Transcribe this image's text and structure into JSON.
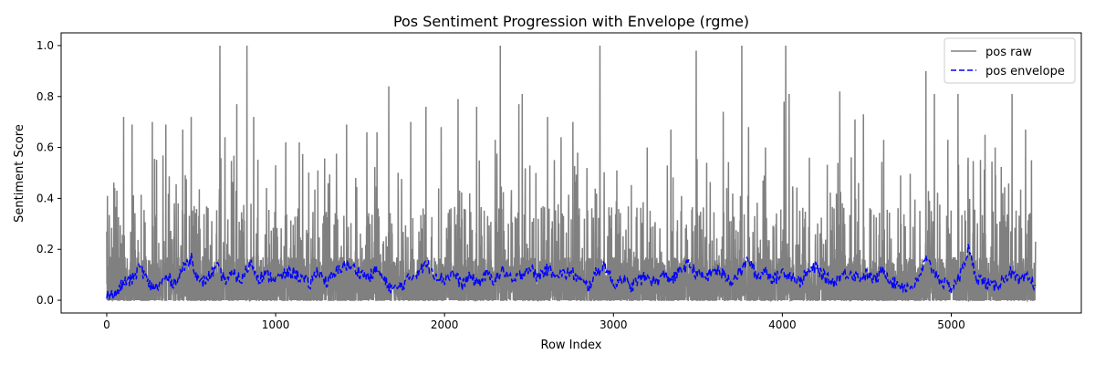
{
  "chart_data": {
    "type": "line",
    "title": "Pos Sentiment Progression with Envelope (rgme)",
    "xlabel": "Row Index",
    "ylabel": "Sentiment Score",
    "xlim": [
      -270,
      5770
    ],
    "ylim": [
      -0.05,
      1.05
    ],
    "x_ticks": [
      0,
      1000,
      2000,
      3000,
      4000,
      5000
    ],
    "y_ticks": [
      0.0,
      0.2,
      0.4,
      0.6,
      0.8,
      1.0
    ],
    "x_tick_labels": [
      "0",
      "1000",
      "2000",
      "3000",
      "4000",
      "5000"
    ],
    "y_tick_labels": [
      "0.0",
      "0.2",
      "0.4",
      "0.6",
      "0.8",
      "1.0"
    ],
    "grid": false,
    "legend_position": "top-right",
    "n_points": 5500,
    "series": [
      {
        "name": "pos raw",
        "color": "#808080",
        "line_style": "solid",
        "typical_range": [
          0.0,
          0.3
        ],
        "peaks": [
          {
            "x": 0,
            "y": 0.27
          },
          {
            "x": 60,
            "y": 0.43
          },
          {
            "x": 100,
            "y": 0.72
          },
          {
            "x": 150,
            "y": 0.69
          },
          {
            "x": 270,
            "y": 0.7
          },
          {
            "x": 350,
            "y": 0.69
          },
          {
            "x": 450,
            "y": 0.67
          },
          {
            "x": 500,
            "y": 0.72
          },
          {
            "x": 670,
            "y": 1.0
          },
          {
            "x": 700,
            "y": 0.64
          },
          {
            "x": 770,
            "y": 0.77
          },
          {
            "x": 830,
            "y": 1.0
          },
          {
            "x": 870,
            "y": 0.72
          },
          {
            "x": 1000,
            "y": 0.53
          },
          {
            "x": 1060,
            "y": 0.62
          },
          {
            "x": 1140,
            "y": 0.62
          },
          {
            "x": 1250,
            "y": 0.51
          },
          {
            "x": 1420,
            "y": 0.69
          },
          {
            "x": 1540,
            "y": 0.66
          },
          {
            "x": 1600,
            "y": 0.66
          },
          {
            "x": 1670,
            "y": 0.84
          },
          {
            "x": 1800,
            "y": 0.7
          },
          {
            "x": 1890,
            "y": 0.76
          },
          {
            "x": 1980,
            "y": 0.68
          },
          {
            "x": 2080,
            "y": 0.79
          },
          {
            "x": 2190,
            "y": 0.76
          },
          {
            "x": 2300,
            "y": 0.63
          },
          {
            "x": 2330,
            "y": 1.0
          },
          {
            "x": 2440,
            "y": 0.77
          },
          {
            "x": 2460,
            "y": 0.81
          },
          {
            "x": 2610,
            "y": 0.72
          },
          {
            "x": 2690,
            "y": 0.64
          },
          {
            "x": 2760,
            "y": 0.7
          },
          {
            "x": 2920,
            "y": 1.0
          },
          {
            "x": 3020,
            "y": 0.51
          },
          {
            "x": 3200,
            "y": 0.6
          },
          {
            "x": 3340,
            "y": 0.67
          },
          {
            "x": 3490,
            "y": 0.98
          },
          {
            "x": 3650,
            "y": 0.74
          },
          {
            "x": 3760,
            "y": 1.0
          },
          {
            "x": 3800,
            "y": 0.68
          },
          {
            "x": 3900,
            "y": 0.6
          },
          {
            "x": 4010,
            "y": 0.78
          },
          {
            "x": 4020,
            "y": 1.0
          },
          {
            "x": 4040,
            "y": 0.81
          },
          {
            "x": 4160,
            "y": 0.56
          },
          {
            "x": 4340,
            "y": 0.82
          },
          {
            "x": 4430,
            "y": 0.71
          },
          {
            "x": 4480,
            "y": 0.73
          },
          {
            "x": 4600,
            "y": 0.63
          },
          {
            "x": 4700,
            "y": 0.49
          },
          {
            "x": 4850,
            "y": 0.9
          },
          {
            "x": 4900,
            "y": 0.81
          },
          {
            "x": 4980,
            "y": 0.63
          },
          {
            "x": 5040,
            "y": 0.81
          },
          {
            "x": 5100,
            "y": 0.56
          },
          {
            "x": 5200,
            "y": 0.65
          },
          {
            "x": 5260,
            "y": 0.6
          },
          {
            "x": 5360,
            "y": 0.81
          },
          {
            "x": 5440,
            "y": 0.67
          },
          {
            "x": 5499,
            "y": 0.23
          }
        ]
      },
      {
        "name": "pos envelope",
        "color": "#0000ff",
        "line_style": "dashed",
        "typical_range": [
          0.02,
          0.15
        ],
        "points": [
          [
            0,
            0.03
          ],
          [
            50,
            0.02
          ],
          [
            100,
            0.07
          ],
          [
            150,
            0.08
          ],
          [
            200,
            0.13
          ],
          [
            250,
            0.06
          ],
          [
            300,
            0.05
          ],
          [
            350,
            0.09
          ],
          [
            400,
            0.07
          ],
          [
            450,
            0.12
          ],
          [
            500,
            0.17
          ],
          [
            550,
            0.06
          ],
          [
            600,
            0.09
          ],
          [
            650,
            0.13
          ],
          [
            700,
            0.08
          ],
          [
            750,
            0.1
          ],
          [
            800,
            0.08
          ],
          [
            850,
            0.15
          ],
          [
            900,
            0.09
          ],
          [
            950,
            0.1
          ],
          [
            1000,
            0.08
          ],
          [
            1050,
            0.1
          ],
          [
            1100,
            0.11
          ],
          [
            1150,
            0.09
          ],
          [
            1200,
            0.06
          ],
          [
            1250,
            0.12
          ],
          [
            1300,
            0.07
          ],
          [
            1350,
            0.1
          ],
          [
            1400,
            0.14
          ],
          [
            1450,
            0.13
          ],
          [
            1500,
            0.11
          ],
          [
            1550,
            0.09
          ],
          [
            1600,
            0.12
          ],
          [
            1650,
            0.07
          ],
          [
            1700,
            0.04
          ],
          [
            1750,
            0.06
          ],
          [
            1800,
            0.09
          ],
          [
            1850,
            0.12
          ],
          [
            1900,
            0.14
          ],
          [
            1950,
            0.1
          ],
          [
            2000,
            0.08
          ],
          [
            2050,
            0.11
          ],
          [
            2100,
            0.06
          ],
          [
            2150,
            0.09
          ],
          [
            2200,
            0.07
          ],
          [
            2250,
            0.1
          ],
          [
            2300,
            0.08
          ],
          [
            2350,
            0.12
          ],
          [
            2400,
            0.07
          ],
          [
            2450,
            0.1
          ],
          [
            2500,
            0.13
          ],
          [
            2550,
            0.09
          ],
          [
            2600,
            0.12
          ],
          [
            2650,
            0.11
          ],
          [
            2700,
            0.1
          ],
          [
            2750,
            0.11
          ],
          [
            2800,
            0.08
          ],
          [
            2850,
            0.05
          ],
          [
            2900,
            0.11
          ],
          [
            2950,
            0.14
          ],
          [
            3000,
            0.06
          ],
          [
            3050,
            0.09
          ],
          [
            3100,
            0.05
          ],
          [
            3150,
            0.08
          ],
          [
            3200,
            0.09
          ],
          [
            3250,
            0.07
          ],
          [
            3300,
            0.1
          ],
          [
            3350,
            0.08
          ],
          [
            3400,
            0.12
          ],
          [
            3450,
            0.14
          ],
          [
            3500,
            0.1
          ],
          [
            3550,
            0.09
          ],
          [
            3600,
            0.12
          ],
          [
            3650,
            0.1
          ],
          [
            3700,
            0.08
          ],
          [
            3750,
            0.11
          ],
          [
            3800,
            0.16
          ],
          [
            3850,
            0.09
          ],
          [
            3900,
            0.12
          ],
          [
            3950,
            0.08
          ],
          [
            4000,
            0.11
          ],
          [
            4050,
            0.1
          ],
          [
            4100,
            0.07
          ],
          [
            4150,
            0.11
          ],
          [
            4200,
            0.13
          ],
          [
            4250,
            0.09
          ],
          [
            4300,
            0.07
          ],
          [
            4350,
            0.1
          ],
          [
            4400,
            0.11
          ],
          [
            4450,
            0.09
          ],
          [
            4500,
            0.1
          ],
          [
            4550,
            0.08
          ],
          [
            4600,
            0.12
          ],
          [
            4650,
            0.07
          ],
          [
            4700,
            0.06
          ],
          [
            4750,
            0.05
          ],
          [
            4800,
            0.07
          ],
          [
            4850,
            0.16
          ],
          [
            4900,
            0.11
          ],
          [
            4950,
            0.07
          ],
          [
            5000,
            0.05
          ],
          [
            5050,
            0.09
          ],
          [
            5100,
            0.2
          ],
          [
            5150,
            0.09
          ],
          [
            5200,
            0.07
          ],
          [
            5250,
            0.05
          ],
          [
            5300,
            0.08
          ],
          [
            5350,
            0.11
          ],
          [
            5400,
            0.07
          ],
          [
            5450,
            0.09
          ],
          [
            5499,
            0.06
          ]
        ]
      }
    ]
  }
}
